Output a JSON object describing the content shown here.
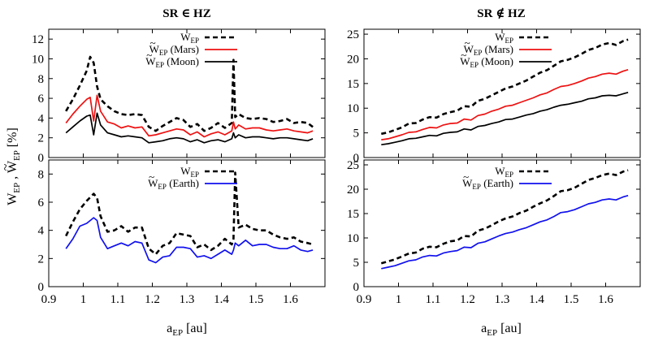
{
  "figure": {
    "column_titles": [
      "SR ∈ HZ",
      "SR ∉ HZ"
    ],
    "xlabel_main": "a",
    "xlabel_sub": "EP",
    "xlabel_unit": " [au]",
    "ylabel": "W̃EP , W̃EP [%]"
  },
  "chart_data": [
    {
      "panel": "top-left",
      "type": "line",
      "title": "SR ∈ HZ",
      "xlabel": "",
      "ylabel": "",
      "xlim": [
        0.9,
        1.7
      ],
      "ylim": [
        0,
        13
      ],
      "yticks": [
        0,
        2,
        4,
        6,
        8,
        10,
        12
      ],
      "xticks": [],
      "legend_position": "top-center",
      "x": [
        0.95,
        0.97,
        0.99,
        1.01,
        1.02,
        1.03,
        1.04,
        1.05,
        1.07,
        1.09,
        1.11,
        1.13,
        1.15,
        1.17,
        1.19,
        1.21,
        1.23,
        1.25,
        1.27,
        1.29,
        1.31,
        1.33,
        1.35,
        1.37,
        1.39,
        1.41,
        1.43,
        1.435,
        1.44,
        1.45,
        1.47,
        1.49,
        1.51,
        1.53,
        1.55,
        1.57,
        1.59,
        1.61,
        1.63,
        1.65,
        1.665
      ],
      "series": [
        {
          "name": "W",
          "sub": "EP",
          "tilde": false,
          "style": "dashed",
          "color": "#000000",
          "values": [
            4.7,
            5.9,
            7.3,
            8.8,
            10.2,
            9.6,
            7.2,
            5.9,
            5.2,
            4.7,
            4.4,
            4.3,
            4.4,
            4.3,
            3.1,
            2.7,
            3.2,
            3.6,
            4.0,
            3.8,
            3.1,
            3.4,
            2.7,
            3.0,
            3.5,
            3.0,
            3.5,
            9.9,
            4.1,
            4.4,
            4.0,
            3.9,
            4.0,
            3.9,
            3.6,
            3.7,
            3.9,
            3.5,
            3.6,
            3.5,
            3.1
          ]
        },
        {
          "name": "W",
          "sub": "EP",
          "tilde": true,
          "suffix": " (Mars)",
          "style": "solid",
          "color": "#ee1111",
          "values": [
            3.5,
            4.4,
            5.2,
            5.9,
            6.1,
            3.7,
            6.3,
            4.7,
            3.6,
            3.4,
            3.0,
            3.2,
            3.0,
            3.1,
            2.2,
            2.3,
            2.5,
            2.7,
            2.9,
            2.8,
            2.3,
            2.6,
            2.1,
            2.4,
            2.6,
            2.3,
            2.7,
            3.6,
            2.9,
            3.3,
            2.9,
            3.0,
            3.0,
            2.8,
            2.7,
            2.8,
            2.9,
            2.7,
            2.6,
            2.5,
            2.7
          ]
        },
        {
          "name": "W",
          "sub": "EP",
          "tilde": true,
          "suffix": " (Moon)",
          "style": "solid",
          "color": "#000000",
          "values": [
            2.5,
            3.1,
            3.7,
            4.2,
            4.3,
            2.3,
            4.5,
            3.3,
            2.5,
            2.3,
            2.1,
            2.2,
            2.1,
            2.0,
            1.5,
            1.6,
            1.7,
            1.9,
            2.0,
            1.9,
            1.6,
            1.8,
            1.5,
            1.7,
            1.8,
            1.6,
            1.9,
            2.5,
            2.0,
            2.3,
            2.0,
            2.1,
            2.1,
            2.0,
            1.9,
            2.0,
            2.0,
            1.9,
            1.8,
            1.7,
            1.9
          ]
        }
      ]
    },
    {
      "panel": "top-right",
      "type": "line",
      "title": "SR ∉ HZ",
      "xlabel": "",
      "ylabel": "",
      "xlim": [
        0.9,
        1.7
      ],
      "ylim": [
        0,
        26
      ],
      "yticks": [
        0,
        5,
        10,
        15,
        20,
        25
      ],
      "xticks": [],
      "legend_position": "top-center",
      "x": [
        0.95,
        0.97,
        0.99,
        1.01,
        1.03,
        1.05,
        1.07,
        1.09,
        1.11,
        1.13,
        1.15,
        1.17,
        1.19,
        1.21,
        1.23,
        1.25,
        1.27,
        1.29,
        1.31,
        1.33,
        1.35,
        1.37,
        1.39,
        1.41,
        1.43,
        1.45,
        1.47,
        1.49,
        1.51,
        1.53,
        1.55,
        1.57,
        1.59,
        1.61,
        1.63,
        1.65,
        1.665
      ],
      "series": [
        {
          "name": "W",
          "sub": "EP",
          "tilde": false,
          "style": "dashed",
          "color": "#000000",
          "values": [
            4.8,
            5.1,
            5.6,
            6.1,
            6.9,
            7.0,
            7.7,
            8.2,
            8.1,
            8.8,
            9.2,
            9.5,
            10.4,
            10.3,
            11.5,
            11.9,
            12.6,
            13.3,
            14.0,
            14.4,
            15.0,
            15.6,
            16.4,
            17.2,
            17.7,
            18.6,
            19.5,
            19.8,
            20.3,
            21.0,
            21.8,
            22.2,
            22.9,
            23.2,
            22.8,
            23.6,
            23.9
          ]
        },
        {
          "name": "W",
          "sub": "EP",
          "tilde": true,
          "suffix": " (Mars)",
          "style": "solid",
          "color": "#ee1111",
          "values": [
            3.6,
            3.8,
            4.2,
            4.6,
            5.1,
            5.2,
            5.7,
            6.1,
            6.0,
            6.6,
            6.9,
            7.0,
            7.8,
            7.6,
            8.5,
            8.8,
            9.4,
            9.8,
            10.4,
            10.6,
            11.1,
            11.6,
            12.1,
            12.7,
            13.1,
            13.8,
            14.4,
            14.6,
            15.0,
            15.5,
            16.1,
            16.4,
            16.9,
            17.1,
            16.9,
            17.5,
            17.8
          ]
        },
        {
          "name": "W",
          "sub": "EP",
          "tilde": true,
          "suffix": " (Moon)",
          "style": "solid",
          "color": "#000000",
          "values": [
            2.6,
            2.8,
            3.1,
            3.4,
            3.8,
            3.9,
            4.2,
            4.5,
            4.4,
            4.9,
            5.1,
            5.2,
            5.8,
            5.6,
            6.3,
            6.5,
            6.9,
            7.2,
            7.7,
            7.8,
            8.2,
            8.6,
            8.9,
            9.4,
            9.7,
            10.2,
            10.6,
            10.8,
            11.1,
            11.4,
            11.9,
            12.1,
            12.5,
            12.6,
            12.5,
            12.9,
            13.2
          ]
        }
      ]
    },
    {
      "panel": "bottom-left",
      "type": "line",
      "title": "",
      "xlabel": "aEP [au]",
      "ylabel": "",
      "xlim": [
        0.9,
        1.7
      ],
      "ylim": [
        0,
        9
      ],
      "yticks": [
        0,
        2,
        4,
        6,
        8
      ],
      "xticks": [
        0.9,
        1.0,
        1.1,
        1.2,
        1.3,
        1.4,
        1.5,
        1.6
      ],
      "xtick_labels": [
        "0.9",
        "1",
        "1.1",
        "1.2",
        "1.3",
        "1.4",
        "1.5",
        "1.6"
      ],
      "legend_position": "top-center",
      "x": [
        0.95,
        0.97,
        0.99,
        1.01,
        1.03,
        1.04,
        1.05,
        1.07,
        1.09,
        1.11,
        1.13,
        1.15,
        1.17,
        1.19,
        1.21,
        1.23,
        1.25,
        1.27,
        1.29,
        1.31,
        1.33,
        1.35,
        1.37,
        1.39,
        1.41,
        1.43,
        1.435,
        1.44,
        1.45,
        1.47,
        1.49,
        1.51,
        1.53,
        1.55,
        1.57,
        1.59,
        1.61,
        1.63,
        1.65,
        1.665
      ],
      "series": [
        {
          "name": "W",
          "sub": "EP",
          "tilde": false,
          "style": "dashed",
          "color": "#000000",
          "values": [
            3.6,
            4.6,
            5.5,
            6.1,
            6.6,
            6.3,
            5.0,
            3.9,
            4.0,
            4.3,
            3.9,
            4.2,
            4.2,
            2.7,
            2.3,
            2.9,
            3.1,
            3.8,
            3.7,
            3.6,
            2.8,
            3.0,
            2.6,
            2.9,
            3.4,
            3.0,
            3.4,
            8.1,
            4.2,
            4.4,
            4.1,
            4.0,
            4.0,
            3.7,
            3.5,
            3.4,
            3.5,
            3.2,
            3.1,
            3.0
          ]
        },
        {
          "name": "W",
          "sub": "EP",
          "tilde": true,
          "suffix": " (Earth)",
          "style": "solid",
          "color": "#1111ee",
          "values": [
            2.7,
            3.4,
            4.3,
            4.5,
            4.9,
            4.7,
            3.5,
            2.7,
            2.9,
            3.1,
            2.9,
            3.2,
            3.1,
            1.9,
            1.7,
            2.1,
            2.2,
            2.8,
            2.8,
            2.7,
            2.1,
            2.2,
            2.0,
            2.3,
            2.6,
            2.3,
            2.6,
            3.1,
            2.9,
            3.3,
            2.9,
            3.0,
            3.0,
            2.8,
            2.7,
            2.7,
            2.9,
            2.6,
            2.5,
            2.6
          ]
        }
      ]
    },
    {
      "panel": "bottom-right",
      "type": "line",
      "title": "",
      "xlabel": "aEP [au]",
      "ylabel": "",
      "xlim": [
        0.9,
        1.7
      ],
      "ylim": [
        0,
        26
      ],
      "yticks": [
        0,
        5,
        10,
        15,
        20,
        25
      ],
      "xticks": [
        0.9,
        1.0,
        1.1,
        1.2,
        1.3,
        1.4,
        1.5,
        1.6
      ],
      "xtick_labels": [
        "0.9",
        "1",
        "1.1",
        "1.2",
        "1.3",
        "1.4",
        "1.5",
        "1.6"
      ],
      "legend_position": "top-center",
      "x": [
        0.95,
        0.97,
        0.99,
        1.01,
        1.03,
        1.05,
        1.07,
        1.09,
        1.11,
        1.13,
        1.15,
        1.17,
        1.19,
        1.21,
        1.23,
        1.25,
        1.27,
        1.29,
        1.31,
        1.33,
        1.35,
        1.37,
        1.39,
        1.41,
        1.43,
        1.45,
        1.47,
        1.49,
        1.51,
        1.53,
        1.55,
        1.57,
        1.59,
        1.61,
        1.63,
        1.65,
        1.665
      ],
      "series": [
        {
          "name": "W",
          "sub": "EP",
          "tilde": false,
          "style": "dashed",
          "color": "#000000",
          "values": [
            4.8,
            5.2,
            5.6,
            6.2,
            6.8,
            7.0,
            7.8,
            8.2,
            8.1,
            8.8,
            9.3,
            9.5,
            10.4,
            10.3,
            11.5,
            11.9,
            12.6,
            13.4,
            14.0,
            14.4,
            15.1,
            15.6,
            16.4,
            17.1,
            17.7,
            18.6,
            19.6,
            19.8,
            20.3,
            21.1,
            21.9,
            22.3,
            22.9,
            23.2,
            22.9,
            23.6,
            23.9
          ]
        },
        {
          "name": "W",
          "sub": "EP",
          "tilde": true,
          "suffix": " (Earth)",
          "style": "solid",
          "color": "#1111ee",
          "values": [
            3.7,
            4.0,
            4.3,
            4.8,
            5.3,
            5.5,
            6.1,
            6.4,
            6.3,
            6.9,
            7.2,
            7.4,
            8.1,
            8.0,
            8.9,
            9.2,
            9.8,
            10.4,
            10.9,
            11.2,
            11.7,
            12.1,
            12.7,
            13.3,
            13.7,
            14.4,
            15.2,
            15.4,
            15.8,
            16.4,
            17.0,
            17.3,
            17.8,
            18.0,
            17.8,
            18.4,
            18.7
          ]
        }
      ]
    }
  ]
}
